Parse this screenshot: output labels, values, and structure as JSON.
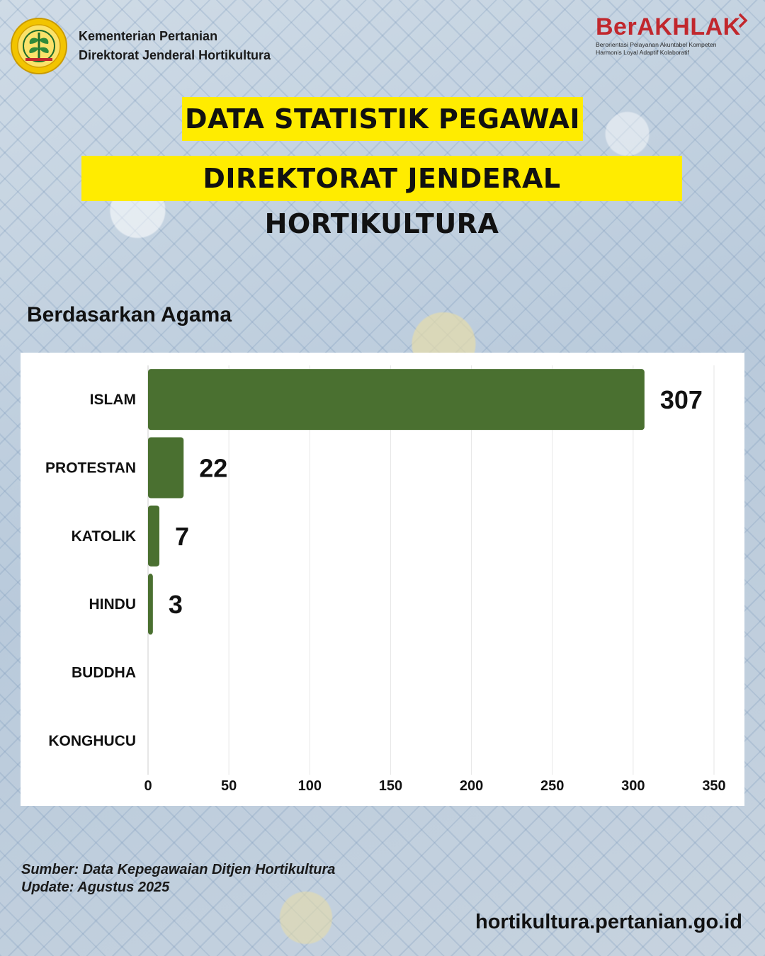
{
  "header": {
    "org_line1": "Kementerian Pertanian",
    "org_line2": "Direktorat Jenderal Hortikultura",
    "logo_icon": "kementan-logo-icon",
    "badge_word": "BerAKHLAK",
    "badge_sub_line1": "Berorientasi Pelayanan Akuntabel Kompeten",
    "badge_sub_line2": "Harmonis Loyal Adaptif Kolaboratif"
  },
  "titles": {
    "line1": "DATA STATISTIK PEGAWAI",
    "line2": "DIREKTORAT JENDERAL HORTIKULTURA"
  },
  "section_title": "Berdasarkan Agama",
  "chart_data": {
    "type": "bar",
    "orientation": "horizontal",
    "categories": [
      "ISLAM",
      "PROTESTAN",
      "KATOLIK",
      "HINDU",
      "BUDDHA",
      "KONGHUCU"
    ],
    "values": [
      307,
      22,
      7,
      3,
      0,
      0
    ],
    "data_labels": [
      "307",
      "22",
      "7",
      "3",
      "",
      ""
    ],
    "xlim": [
      0,
      350
    ],
    "x_ticks": [
      0,
      50,
      100,
      150,
      200,
      250,
      300,
      350
    ],
    "grid": "vertical",
    "bar_color": "#4a7030"
  },
  "footer": {
    "source": "Sumber: Data Kepegawaian Ditjen Hortikultura",
    "update": "Update: Agustus 2025",
    "url": "hortikultura.pertanian.go.id"
  },
  "colors": {
    "title_bg": "#ffec00",
    "badge_red": "#c1272d"
  }
}
